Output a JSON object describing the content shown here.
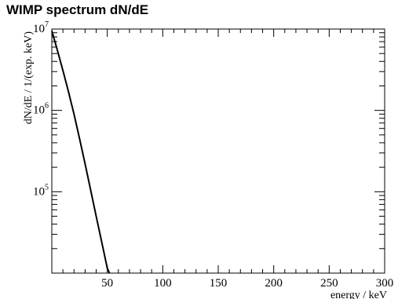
{
  "chart_data": {
    "type": "line",
    "title": "WIMP spectrum dN/dE",
    "xlabel": "energy / keV",
    "ylabel": "dN/dE / 1/(exp. keV)",
    "xlim": [
      0,
      300
    ],
    "ylim": [
      10000,
      10000000
    ],
    "yscale": "log",
    "grid": false,
    "legend": "none",
    "x_tick_labels": [
      "50",
      "100",
      "150",
      "200",
      "250",
      "300"
    ],
    "y_tick_labels": [
      {
        "base": "10",
        "exp": "5",
        "value": 100000
      },
      {
        "base": "10",
        "exp": "6",
        "value": 1000000
      },
      {
        "base": "10",
        "exp": "7",
        "value": 10000000
      }
    ],
    "series": [
      {
        "color": "#000000",
        "x": [
          0,
          5,
          10,
          15,
          20,
          25,
          30,
          35,
          40,
          45,
          50,
          52
        ],
        "y": [
          9500000,
          5500000,
          3100000,
          1700000,
          900000,
          450000,
          220000,
          105000,
          50000,
          24000,
          11500,
          9000
        ]
      }
    ]
  }
}
